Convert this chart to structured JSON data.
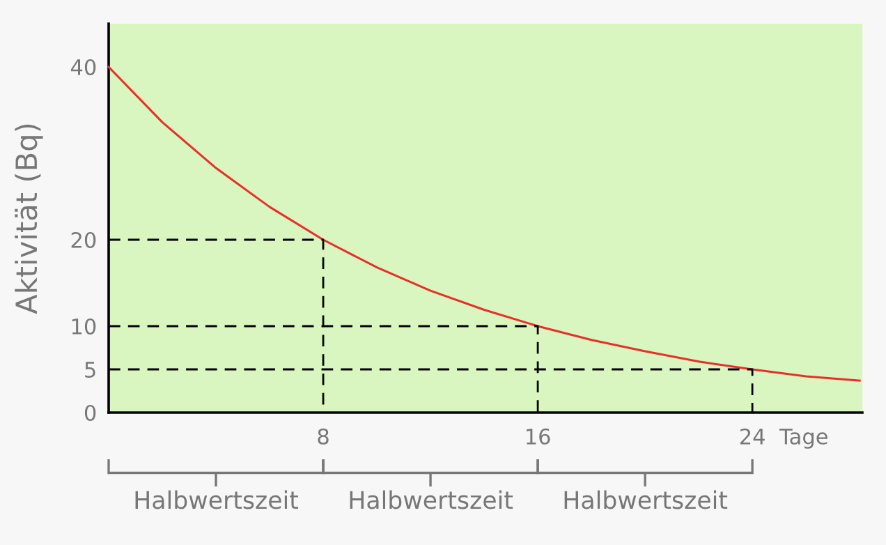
{
  "chart_data": {
    "type": "line",
    "ylabel": "Aktivität (Bq)",
    "xlabel": "Tage",
    "xlim": [
      0,
      28.1
    ],
    "ylim": [
      0,
      45
    ],
    "xticks": [
      8,
      16,
      24
    ],
    "yticks": [
      0,
      5,
      10,
      20,
      40
    ],
    "grid": false,
    "legend": false,
    "marker": "none",
    "series": [
      {
        "color": "#e8302a",
        "line_style": "solid",
        "x": [
          0,
          2,
          4,
          6,
          8,
          10,
          12,
          14,
          16,
          18,
          20,
          22,
          24,
          26,
          28
        ],
        "values": [
          40,
          33.6,
          28.3,
          23.8,
          20,
          16.8,
          14.1,
          11.9,
          10,
          8.4,
          7.1,
          5.9,
          5,
          4.2,
          3.7
        ]
      },
      {
        "color": "#000000",
        "line_style": "dashed",
        "x": [
          0,
          8,
          8
        ],
        "values": [
          20,
          20,
          0
        ]
      },
      {
        "color": "#000000",
        "line_style": "dashed",
        "x": [
          0,
          16,
          16
        ],
        "values": [
          10,
          10,
          0
        ]
      },
      {
        "color": "#000000",
        "line_style": "dashed",
        "x": [
          0,
          24,
          24
        ],
        "values": [
          5,
          5,
          0
        ]
      }
    ],
    "annotations": [
      "Halbwertszeit",
      "Halbwertszeit",
      "Halbwertszeit"
    ]
  }
}
